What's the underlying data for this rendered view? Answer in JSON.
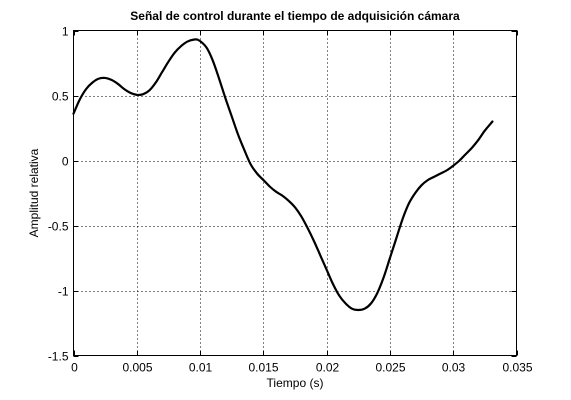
{
  "chart_data": {
    "type": "line",
    "title": "Señal de control durante el tiempo de adquisición cámara",
    "xlabel": "Tiempo (s)",
    "ylabel": "Amplitud relativa",
    "xlim": [
      0,
      0.035
    ],
    "ylim": [
      -1.5,
      1
    ],
    "grid": true,
    "x_ticks": [
      0,
      0.005,
      0.01,
      0.015,
      0.02,
      0.025,
      0.03,
      0.035
    ],
    "x_tick_labels": [
      "0",
      "0.005",
      "0.01",
      "0.015",
      "0.02",
      "0.025",
      "0.03",
      "0.035"
    ],
    "y_ticks": [
      -1.5,
      -1,
      -0.5,
      0,
      0.5,
      1
    ],
    "y_tick_labels": [
      "-1.5",
      "-1",
      "-0.5",
      "0",
      "0.5",
      "1"
    ],
    "series": [
      {
        "color": "#000000",
        "x": [
          0,
          0.0005,
          0.001,
          0.0015,
          0.002,
          0.0025,
          0.003,
          0.0035,
          0.004,
          0.0045,
          0.005,
          0.0055,
          0.006,
          0.0065,
          0.007,
          0.0075,
          0.008,
          0.0085,
          0.009,
          0.0095,
          0.0099,
          0.0105,
          0.011,
          0.0115,
          0.012,
          0.0125,
          0.013,
          0.0135,
          0.014,
          0.0145,
          0.015,
          0.0155,
          0.016,
          0.0165,
          0.017,
          0.0175,
          0.018,
          0.0185,
          0.019,
          0.0195,
          0.02,
          0.0205,
          0.021,
          0.0215,
          0.022,
          0.0225,
          0.023,
          0.0235,
          0.024,
          0.0245,
          0.025,
          0.0255,
          0.026,
          0.0265,
          0.027,
          0.0275,
          0.028,
          0.0285,
          0.029,
          0.0295,
          0.03,
          0.0305,
          0.031,
          0.0315,
          0.032,
          0.0325,
          0.0331
        ],
        "y": [
          0.36,
          0.47,
          0.55,
          0.6,
          0.63,
          0.635,
          0.62,
          0.59,
          0.55,
          0.52,
          0.505,
          0.51,
          0.54,
          0.6,
          0.68,
          0.76,
          0.83,
          0.88,
          0.915,
          0.93,
          0.925,
          0.87,
          0.77,
          0.63,
          0.48,
          0.34,
          0.2,
          0.08,
          -0.03,
          -0.1,
          -0.15,
          -0.2,
          -0.24,
          -0.27,
          -0.31,
          -0.36,
          -0.43,
          -0.52,
          -0.62,
          -0.73,
          -0.84,
          -0.95,
          -1.04,
          -1.1,
          -1.14,
          -1.15,
          -1.14,
          -1.1,
          -1.02,
          -0.9,
          -0.75,
          -0.6,
          -0.45,
          -0.33,
          -0.25,
          -0.19,
          -0.15,
          -0.125,
          -0.1,
          -0.075,
          -0.04,
          0.0,
          0.05,
          0.1,
          0.16,
          0.23,
          0.3
        ]
      }
    ]
  }
}
